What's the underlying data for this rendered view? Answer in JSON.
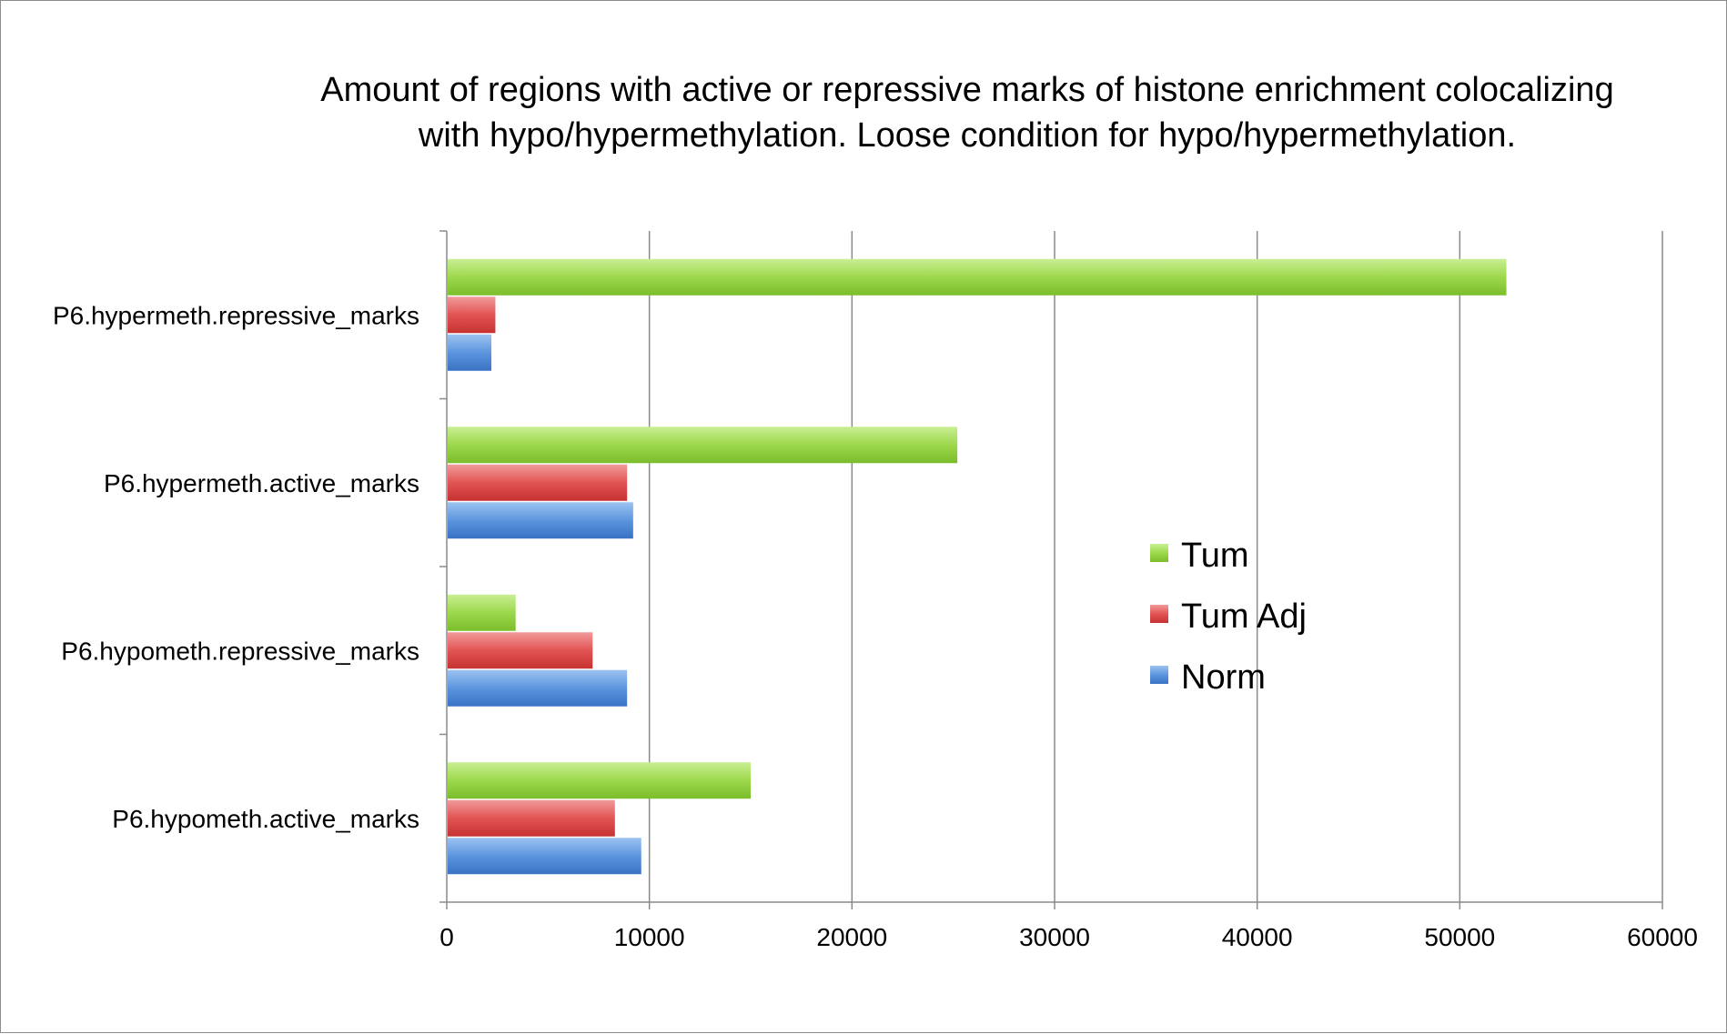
{
  "chart_data": {
    "type": "bar",
    "orientation": "horizontal",
    "title_lines": [
      "Amount of regions with active or repressive marks of histone enrichment colocalizing",
      "with hypo/hypermethylation. Loose condition for hypo/hypermethylation."
    ],
    "categories": [
      "P6.hypermeth.repressive_marks",
      "P6.hypermeth.active_marks",
      "P6.hypometh.repressive_marks",
      "P6.hypometh.active_marks"
    ],
    "series": [
      {
        "name": "Tum",
        "color": "#8fce3a",
        "values": [
          52300,
          25200,
          3400,
          15000
        ]
      },
      {
        "name": "Tum Adj",
        "color": "#e04848",
        "values": [
          2400,
          8900,
          7200,
          8300
        ]
      },
      {
        "name": "Norm",
        "color": "#4a88d8",
        "values": [
          2200,
          9200,
          8900,
          9600
        ]
      }
    ],
    "xlim": [
      0,
      60000
    ],
    "x_ticks": [
      "0",
      "10000",
      "20000",
      "30000",
      "40000",
      "50000",
      "60000"
    ],
    "xlabel": "",
    "ylabel": "",
    "grid": "vertical",
    "legend_position": "right"
  }
}
